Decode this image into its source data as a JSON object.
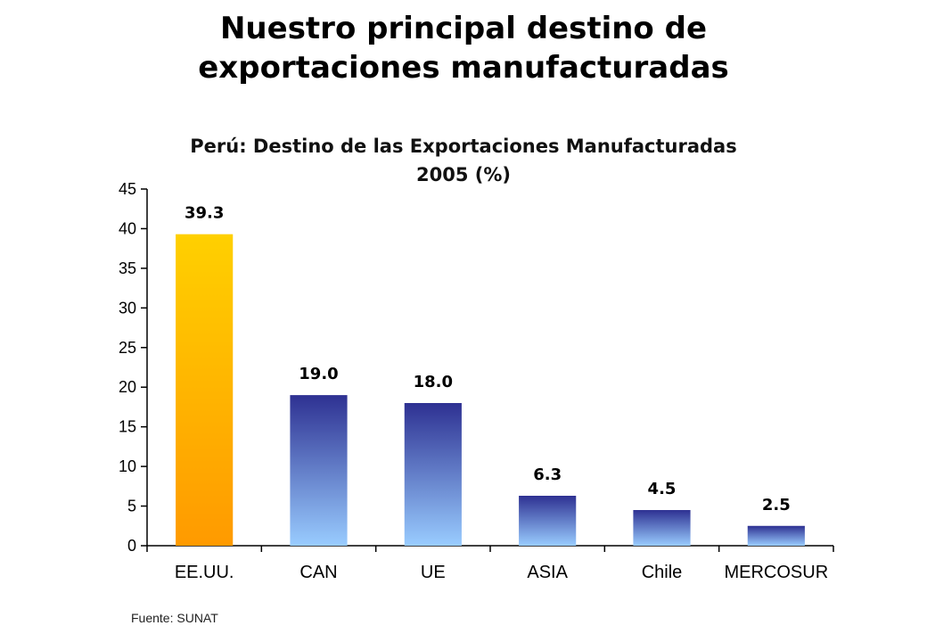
{
  "page": {
    "title_line1": "Nuestro principal destino de",
    "title_line2": "exportaciones manufacturadas",
    "source": "Fuente: SUNAT"
  },
  "chart_data": {
    "type": "bar",
    "title_line1": "Perú: Destino de las Exportaciones Manufacturadas",
    "title_line2": "2005 (%)",
    "categories": [
      "EE.UU.",
      "CAN",
      "UE",
      "ASIA",
      "Chile",
      "MERCOSUR"
    ],
    "values": [
      39.3,
      19.0,
      18.0,
      6.3,
      4.5,
      2.5
    ],
    "value_labels": [
      "39.3",
      "19.0",
      "18.0",
      "6.3",
      "4.5",
      "2.5"
    ],
    "xlabel": "",
    "ylabel": "",
    "ylim": [
      0,
      45
    ],
    "yticks": [
      0,
      5,
      10,
      15,
      20,
      25,
      30,
      35,
      40,
      45
    ],
    "grid": false,
    "legend": "none",
    "colors": {
      "highlight_top": "#FFD000",
      "highlight_bottom": "#FF9A00",
      "bar_top": "#2E3192",
      "bar_bottom": "#99CCFF",
      "axis": "#000000"
    }
  }
}
